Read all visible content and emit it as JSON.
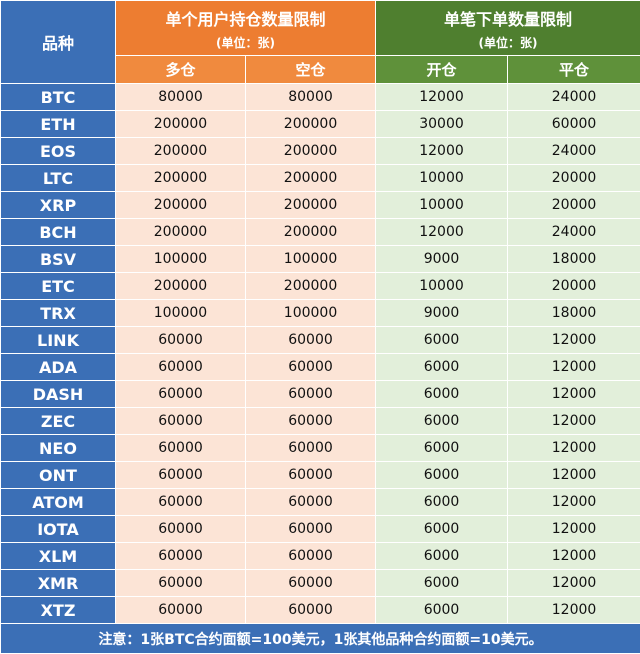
{
  "table": {
    "header": {
      "symbol": "品种",
      "group1": {
        "title": "单个用户持仓数量限制",
        "unit": "(单位：张)"
      },
      "group2": {
        "title": "单笔下单数量限制",
        "unit": "(单位：张)"
      },
      "columns": [
        "多仓",
        "空仓",
        "开仓",
        "平仓"
      ]
    },
    "rows": [
      [
        "BTC",
        80000,
        80000,
        12000,
        24000
      ],
      [
        "ETH",
        200000,
        200000,
        30000,
        60000
      ],
      [
        "EOS",
        200000,
        200000,
        12000,
        24000
      ],
      [
        "LTC",
        200000,
        200000,
        10000,
        20000
      ],
      [
        "XRP",
        200000,
        200000,
        10000,
        20000
      ],
      [
        "BCH",
        200000,
        200000,
        12000,
        24000
      ],
      [
        "BSV",
        100000,
        100000,
        9000,
        18000
      ],
      [
        "ETC",
        200000,
        200000,
        10000,
        20000
      ],
      [
        "TRX",
        100000,
        100000,
        9000,
        18000
      ],
      [
        "LINK",
        60000,
        60000,
        6000,
        12000
      ],
      [
        "ADA",
        60000,
        60000,
        6000,
        12000
      ],
      [
        "DASH",
        60000,
        60000,
        6000,
        12000
      ],
      [
        "ZEC",
        60000,
        60000,
        6000,
        12000
      ],
      [
        "NEO",
        60000,
        60000,
        6000,
        12000
      ],
      [
        "ONT",
        60000,
        60000,
        6000,
        12000
      ],
      [
        "ATOM",
        60000,
        60000,
        6000,
        12000
      ],
      [
        "IOTA",
        60000,
        60000,
        6000,
        12000
      ],
      [
        "XLM",
        60000,
        60000,
        6000,
        12000
      ],
      [
        "XMR",
        60000,
        60000,
        6000,
        12000
      ],
      [
        "XTZ",
        60000,
        60000,
        6000,
        12000
      ]
    ],
    "footer": "注意：1张BTC合约面额=100美元，1张其他品种合约面额=10美元。"
  }
}
